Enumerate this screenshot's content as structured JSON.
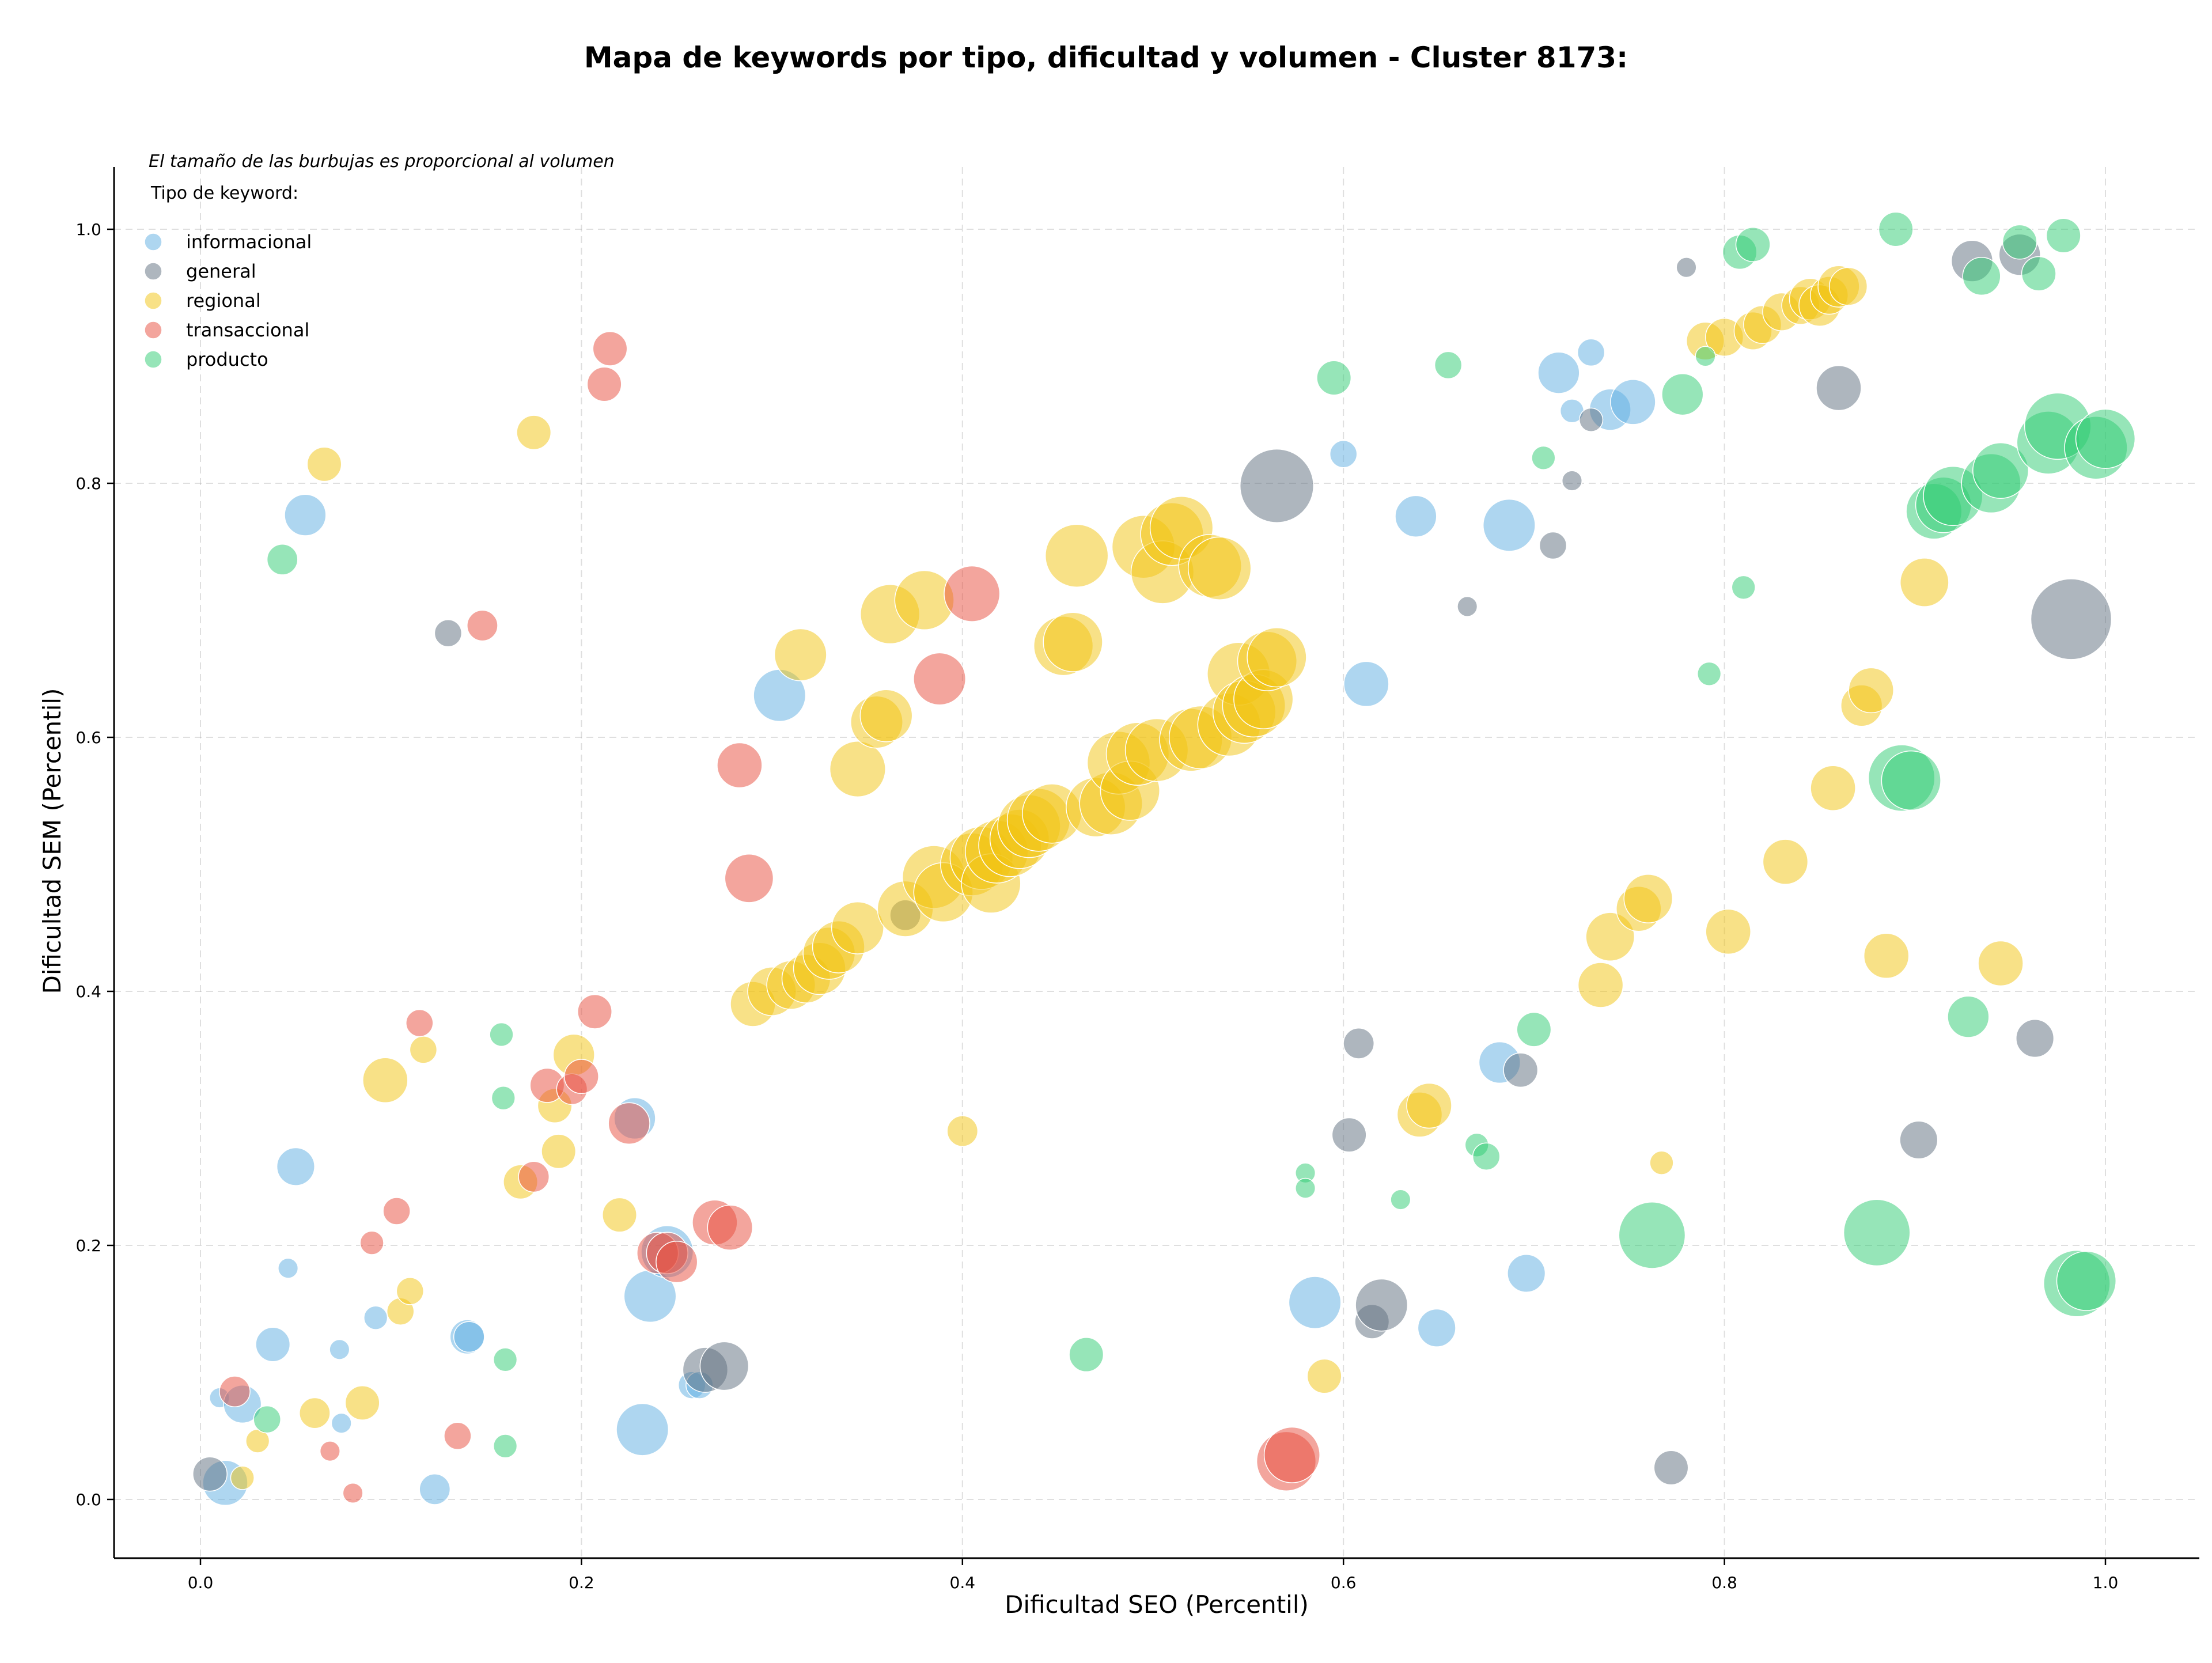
{
  "chart_data": {
    "type": "scatter",
    "title": "Mapa de keywords por tipo, dificultad y volumen - Cluster 8173:",
    "subtitle": "El tamaño de las burbujas es proporcional al volumen",
    "xlabel": "Dificultad SEO (Percentil)",
    "ylabel": "Dificultad SEM (Percentil)",
    "xlim": [
      -0.045,
      1.05
    ],
    "ylim": [
      -0.045,
      1.05
    ],
    "xticks": [
      "0.0",
      "0.2",
      "0.4",
      "0.6",
      "0.8",
      "1.0"
    ],
    "yticks": [
      "0.0",
      "0.2",
      "0.4",
      "0.6",
      "0.8",
      "1.0"
    ],
    "grid": true,
    "legend": {
      "title": "Tipo de keyword:",
      "position": "top-left"
    },
    "size_encoding": "volume (relative 1-10)",
    "series": [
      {
        "name": "informacional",
        "color": "#5dade2",
        "points": [
          [
            0.01,
            0.08,
            1.5
          ],
          [
            0.013,
            0.013,
            5
          ],
          [
            0.022,
            0.075,
            4
          ],
          [
            0.038,
            0.122,
            3.5
          ],
          [
            0.046,
            0.182,
            1.5
          ],
          [
            0.05,
            0.262,
            4
          ],
          [
            0.055,
            0.775,
            4.5
          ],
          [
            0.073,
            0.118,
            1.5
          ],
          [
            0.074,
            0.06,
            1.5
          ],
          [
            0.092,
            0.143,
            2
          ],
          [
            0.123,
            0.008,
            3
          ],
          [
            0.14,
            0.128,
            3.5
          ],
          [
            0.141,
            0.128,
            3
          ],
          [
            0.228,
            0.3,
            4.5
          ],
          [
            0.232,
            0.055,
            6
          ],
          [
            0.236,
            0.16,
            6
          ],
          [
            0.245,
            0.195,
            6
          ],
          [
            0.258,
            0.09,
            2.5
          ],
          [
            0.262,
            0.09,
            2.5
          ],
          [
            0.304,
            0.633,
            6
          ],
          [
            0.585,
            0.155,
            6
          ],
          [
            0.6,
            0.823,
            2.5
          ],
          [
            0.612,
            0.642,
            5
          ],
          [
            0.638,
            0.774,
            4.5
          ],
          [
            0.649,
            0.135,
            4
          ],
          [
            0.682,
            0.344,
            4.5
          ],
          [
            0.687,
            0.767,
            6
          ],
          [
            0.696,
            0.178,
            4
          ],
          [
            0.713,
            0.887,
            4.5
          ],
          [
            0.72,
            0.857,
            2
          ],
          [
            0.73,
            0.903,
            2.5
          ],
          [
            0.74,
            0.858,
            4.5
          ],
          [
            0.752,
            0.864,
            5
          ]
        ]
      },
      {
        "name": "general",
        "color": "#5d6d7e",
        "points": [
          [
            0.005,
            0.02,
            3.5
          ],
          [
            0.13,
            0.682,
            2.5
          ],
          [
            0.265,
            0.102,
            5
          ],
          [
            0.275,
            0.105,
            5.5
          ],
          [
            0.37,
            0.46,
            3
          ],
          [
            0.565,
            0.798,
            9
          ],
          [
            0.603,
            0.287,
            3.5
          ],
          [
            0.608,
            0.359,
            3
          ],
          [
            0.615,
            0.14,
            3.5
          ],
          [
            0.62,
            0.153,
            6
          ],
          [
            0.665,
            0.703,
            1.5
          ],
          [
            0.693,
            0.338,
            3.5
          ],
          [
            0.71,
            0.751,
            2.5
          ],
          [
            0.72,
            0.802,
            1.5
          ],
          [
            0.73,
            0.85,
            2
          ],
          [
            0.772,
            0.025,
            3.5
          ],
          [
            0.78,
            0.97,
            1.5
          ],
          [
            0.86,
            0.875,
            5
          ],
          [
            0.902,
            0.283,
            4
          ],
          [
            0.93,
            0.975,
            4.5
          ],
          [
            0.955,
            0.98,
            4.5
          ],
          [
            0.963,
            0.363,
            4
          ],
          [
            0.982,
            0.693,
            10
          ]
        ]
      },
      {
        "name": "regional",
        "color": "#f1c40f",
        "points": [
          [
            0.022,
            0.017,
            2
          ],
          [
            0.03,
            0.046,
            2
          ],
          [
            0.06,
            0.068,
            3
          ],
          [
            0.065,
            0.815,
            3.5
          ],
          [
            0.085,
            0.076,
            3.5
          ],
          [
            0.097,
            0.33,
            5
          ],
          [
            0.105,
            0.148,
            2.5
          ],
          [
            0.11,
            0.164,
            2.5
          ],
          [
            0.117,
            0.354,
            2.5
          ],
          [
            0.168,
            0.25,
            3.5
          ],
          [
            0.175,
            0.84,
            3.5
          ],
          [
            0.186,
            0.31,
            3.5
          ],
          [
            0.188,
            0.274,
            3.5
          ],
          [
            0.196,
            0.35,
            4.5
          ],
          [
            0.22,
            0.224,
            3.5
          ],
          [
            0.29,
            0.39,
            5
          ],
          [
            0.3,
            0.4,
            5.5
          ],
          [
            0.31,
            0.405,
            5.5
          ],
          [
            0.315,
            0.665,
            6
          ],
          [
            0.318,
            0.41,
            5.5
          ],
          [
            0.325,
            0.418,
            6
          ],
          [
            0.33,
            0.43,
            6
          ],
          [
            0.335,
            0.435,
            6
          ],
          [
            0.345,
            0.45,
            6
          ],
          [
            0.345,
            0.575,
            6.5
          ],
          [
            0.355,
            0.612,
            6
          ],
          [
            0.36,
            0.617,
            6
          ],
          [
            0.362,
            0.697,
            7
          ],
          [
            0.37,
            0.465,
            6.5
          ],
          [
            0.38,
            0.708,
            7
          ],
          [
            0.385,
            0.49,
            7.5
          ],
          [
            0.39,
            0.478,
            7
          ],
          [
            0.4,
            0.29,
            3
          ],
          [
            0.405,
            0.5,
            7.5
          ],
          [
            0.41,
            0.505,
            7.5
          ],
          [
            0.415,
            0.485,
            7
          ],
          [
            0.418,
            0.51,
            7.5
          ],
          [
            0.425,
            0.515,
            7.5
          ],
          [
            0.43,
            0.52,
            7
          ],
          [
            0.435,
            0.53,
            7.5
          ],
          [
            0.44,
            0.535,
            7.5
          ],
          [
            0.447,
            0.54,
            7
          ],
          [
            0.453,
            0.672,
            7
          ],
          [
            0.458,
            0.675,
            7
          ],
          [
            0.46,
            0.743,
            7.5
          ],
          [
            0.47,
            0.545,
            7
          ],
          [
            0.478,
            0.548,
            7.5
          ],
          [
            0.482,
            0.58,
            7.5
          ],
          [
            0.488,
            0.558,
            7
          ],
          [
            0.492,
            0.587,
            7.5
          ],
          [
            0.495,
            0.75,
            7.5
          ],
          [
            0.502,
            0.59,
            7.5
          ],
          [
            0.505,
            0.73,
            7.5
          ],
          [
            0.51,
            0.76,
            7.5
          ],
          [
            0.515,
            0.765,
            7.5
          ],
          [
            0.52,
            0.598,
            7.5
          ],
          [
            0.525,
            0.6,
            7.5
          ],
          [
            0.53,
            0.735,
            7.5
          ],
          [
            0.535,
            0.733,
            7.5
          ],
          [
            0.54,
            0.61,
            7.5
          ],
          [
            0.545,
            0.65,
            7.5
          ],
          [
            0.548,
            0.62,
            7.5
          ],
          [
            0.553,
            0.625,
            7.5
          ],
          [
            0.558,
            0.63,
            7
          ],
          [
            0.56,
            0.66,
            7
          ],
          [
            0.565,
            0.663,
            7
          ],
          [
            0.59,
            0.097,
            3.5
          ],
          [
            0.64,
            0.303,
            5
          ],
          [
            0.645,
            0.31,
            5
          ],
          [
            0.735,
            0.405,
            5
          ],
          [
            0.74,
            0.443,
            5.5
          ],
          [
            0.755,
            0.465,
            5
          ],
          [
            0.76,
            0.473,
            5.5
          ],
          [
            0.767,
            0.265,
            2
          ],
          [
            0.79,
            0.912,
            4
          ],
          [
            0.8,
            0.915,
            4
          ],
          [
            0.802,
            0.447,
            5
          ],
          [
            0.815,
            0.92,
            4
          ],
          [
            0.82,
            0.925,
            4
          ],
          [
            0.83,
            0.935,
            4
          ],
          [
            0.832,
            0.502,
            5
          ],
          [
            0.84,
            0.94,
            4
          ],
          [
            0.845,
            0.945,
            4.5
          ],
          [
            0.85,
            0.94,
            4.5
          ],
          [
            0.855,
            0.948,
            4
          ],
          [
            0.857,
            0.56,
            5
          ],
          [
            0.86,
            0.955,
            4.5
          ],
          [
            0.865,
            0.955,
            4
          ],
          [
            0.872,
            0.625,
            4.5
          ],
          [
            0.877,
            0.637,
            5
          ],
          [
            0.885,
            0.428,
            5
          ],
          [
            0.905,
            0.722,
            5.5
          ],
          [
            0.945,
            0.422,
            5
          ]
        ]
      },
      {
        "name": "transaccional",
        "color": "#e74c3c",
        "points": [
          [
            0.018,
            0.085,
            3
          ],
          [
            0.068,
            0.038,
            1.5
          ],
          [
            0.08,
            0.005,
            1.5
          ],
          [
            0.09,
            0.202,
            2
          ],
          [
            0.103,
            0.227,
            2.5
          ],
          [
            0.115,
            0.375,
            2.5
          ],
          [
            0.135,
            0.05,
            2.5
          ],
          [
            0.148,
            0.688,
            3
          ],
          [
            0.175,
            0.254,
            3
          ],
          [
            0.182,
            0.326,
            3.5
          ],
          [
            0.195,
            0.323,
            3
          ],
          [
            0.2,
            0.333,
            3.5
          ],
          [
            0.207,
            0.384,
            3.5
          ],
          [
            0.212,
            0.878,
            3.5
          ],
          [
            0.215,
            0.906,
            3.5
          ],
          [
            0.225,
            0.296,
            4.5
          ],
          [
            0.24,
            0.194,
            4.5
          ],
          [
            0.245,
            0.194,
            4.5
          ],
          [
            0.25,
            0.187,
            4.5
          ],
          [
            0.27,
            0.218,
            5
          ],
          [
            0.278,
            0.214,
            5
          ],
          [
            0.283,
            0.578,
            5
          ],
          [
            0.288,
            0.489,
            5.5
          ],
          [
            0.388,
            0.646,
            6
          ],
          [
            0.405,
            0.713,
            6.5
          ],
          [
            0.57,
            0.03,
            7
          ],
          [
            0.573,
            0.035,
            6.5
          ]
        ]
      },
      {
        "name": "producto",
        "color": "#2ecc71",
        "points": [
          [
            0.035,
            0.063,
            2.5
          ],
          [
            0.043,
            0.74,
            3
          ],
          [
            0.158,
            0.366,
            2
          ],
          [
            0.159,
            0.316,
            2
          ],
          [
            0.16,
            0.11,
            2
          ],
          [
            0.16,
            0.042,
            2
          ],
          [
            0.465,
            0.114,
            3.5
          ],
          [
            0.58,
            0.257,
            1.5
          ],
          [
            0.58,
            0.245,
            1.5
          ],
          [
            0.595,
            0.883,
            3.5
          ],
          [
            0.63,
            0.236,
            1.5
          ],
          [
            0.655,
            0.893,
            2.5
          ],
          [
            0.67,
            0.279,
            2
          ],
          [
            0.675,
            0.27,
            2.5
          ],
          [
            0.7,
            0.37,
            3.5
          ],
          [
            0.705,
            0.82,
            2
          ],
          [
            0.762,
            0.208,
            8
          ],
          [
            0.778,
            0.87,
            4.5
          ],
          [
            0.79,
            0.9,
            1.5
          ],
          [
            0.792,
            0.65,
            2
          ],
          [
            0.808,
            0.982,
            3.5
          ],
          [
            0.81,
            0.718,
            2
          ],
          [
            0.815,
            0.988,
            3.5
          ],
          [
            0.88,
            0.21,
            8
          ],
          [
            0.89,
            1.0,
            3.5
          ],
          [
            0.893,
            0.568,
            8
          ],
          [
            0.898,
            0.566,
            7
          ],
          [
            0.91,
            0.778,
            6.5
          ],
          [
            0.915,
            0.783,
            6.5
          ],
          [
            0.92,
            0.79,
            7
          ],
          [
            0.928,
            0.38,
            4.5
          ],
          [
            0.935,
            0.963,
            4
          ],
          [
            0.94,
            0.8,
            7
          ],
          [
            0.945,
            0.81,
            6.5
          ],
          [
            0.955,
            0.99,
            3.5
          ],
          [
            0.965,
            0.965,
            3.5
          ],
          [
            0.97,
            0.832,
            7.5
          ],
          [
            0.975,
            0.845,
            8
          ],
          [
            0.978,
            0.995,
            3.5
          ],
          [
            0.985,
            0.17,
            8
          ],
          [
            0.99,
            0.172,
            7
          ],
          [
            0.995,
            0.828,
            7.5
          ],
          [
            1.0,
            0.835,
            7
          ]
        ]
      }
    ]
  }
}
